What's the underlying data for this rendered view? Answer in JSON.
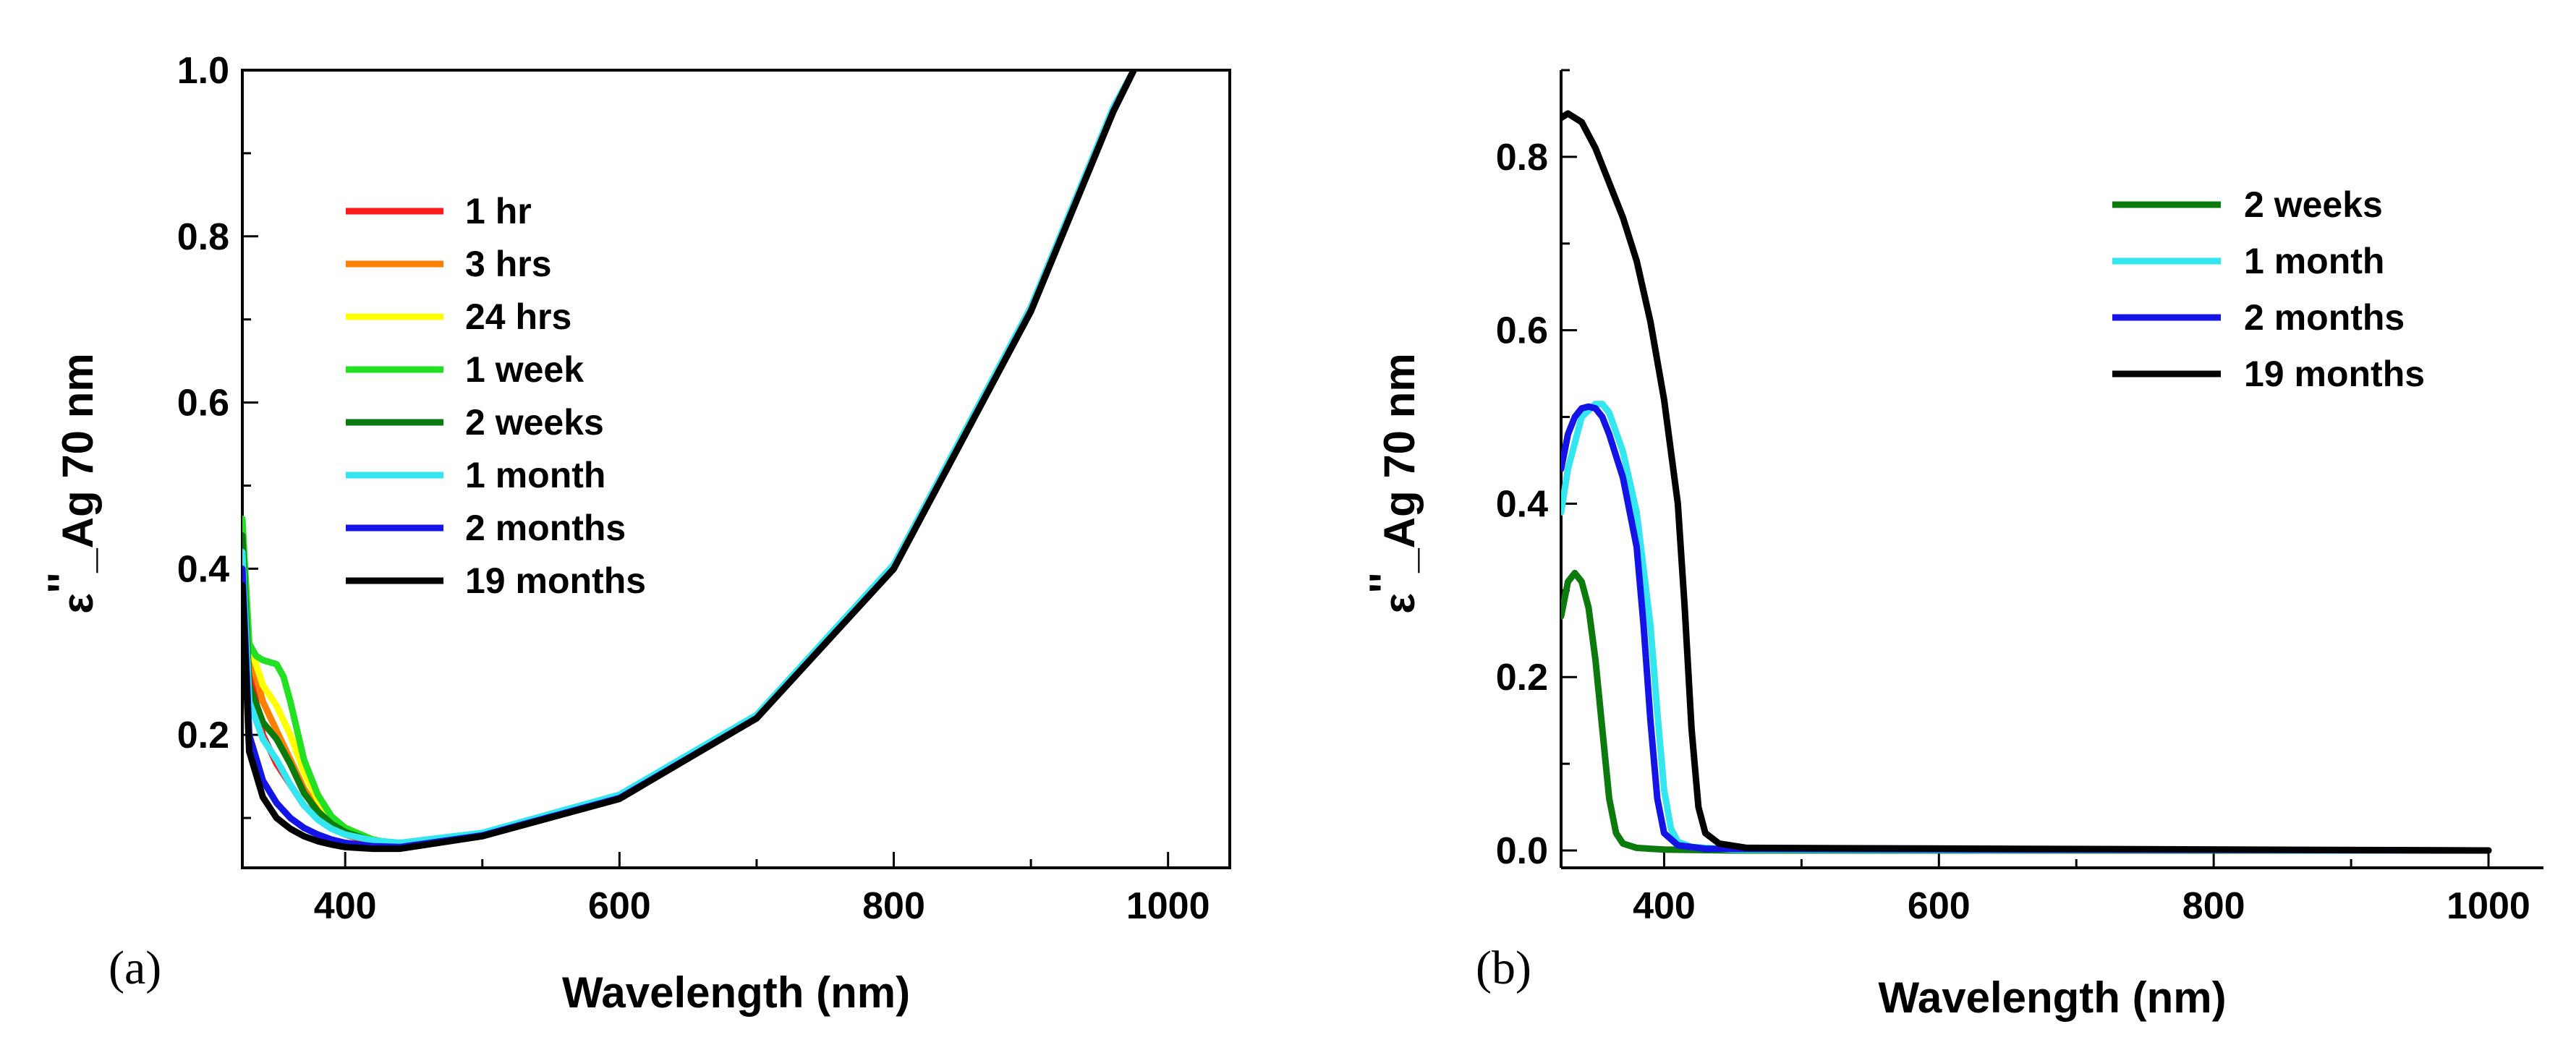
{
  "chart_data": [
    {
      "id": "a",
      "type": "line",
      "panel_label": "(a)",
      "xlabel": "Wavelength (nm)",
      "ylabel_main": "ε",
      "ylabel_prime": "''",
      "ylabel_rest": "_Ag 70 nm",
      "xlim": [
        325,
        1045
      ],
      "ylim": [
        0.04,
        1.0
      ],
      "xticks": [
        400,
        600,
        800,
        1000
      ],
      "xtick_labels": [
        "400",
        "600",
        "800",
        "1000"
      ],
      "yticks": [
        0.2,
        0.4,
        0.6,
        0.8,
        1.0
      ],
      "ytick_labels": [
        "0.2",
        "0.4",
        "0.6",
        "0.8",
        "1.0"
      ],
      "legend_position": "upper-left",
      "series": [
        {
          "name": "1 hr",
          "color": "#ff1a1a",
          "x": [
            325,
            330,
            340,
            350,
            360,
            370,
            380,
            390,
            400,
            420,
            440,
            500,
            600,
            700,
            800,
            900,
            960,
            975
          ],
          "y": [
            0.43,
            0.28,
            0.2,
            0.165,
            0.14,
            0.115,
            0.1,
            0.088,
            0.08,
            0.07,
            0.066,
            0.08,
            0.125,
            0.22,
            0.4,
            0.71,
            0.95,
            1.0
          ]
        },
        {
          "name": "3 hrs",
          "color": "#ff8000",
          "x": [
            325,
            330,
            340,
            350,
            360,
            370,
            380,
            390,
            400,
            420,
            440,
            500,
            600,
            700,
            800,
            900,
            960,
            975
          ],
          "y": [
            0.44,
            0.3,
            0.24,
            0.205,
            0.17,
            0.135,
            0.11,
            0.094,
            0.084,
            0.072,
            0.067,
            0.08,
            0.125,
            0.22,
            0.4,
            0.71,
            0.95,
            1.0
          ]
        },
        {
          "name": "24 hrs",
          "color": "#ffff00",
          "x": [
            325,
            330,
            340,
            350,
            360,
            370,
            380,
            390,
            400,
            420,
            440,
            500,
            600,
            700,
            800,
            900,
            960,
            975
          ],
          "y": [
            0.45,
            0.31,
            0.26,
            0.235,
            0.2,
            0.155,
            0.122,
            0.1,
            0.088,
            0.074,
            0.068,
            0.08,
            0.125,
            0.22,
            0.4,
            0.71,
            0.95,
            1.0
          ]
        },
        {
          "name": "1 week",
          "color": "#22e022",
          "x": [
            325,
            330,
            335,
            340,
            350,
            355,
            360,
            370,
            380,
            390,
            400,
            420,
            440,
            500,
            600,
            700,
            800,
            900,
            960,
            975
          ],
          "y": [
            0.46,
            0.31,
            0.295,
            0.29,
            0.285,
            0.27,
            0.24,
            0.17,
            0.128,
            0.102,
            0.088,
            0.074,
            0.068,
            0.08,
            0.125,
            0.22,
            0.4,
            0.71,
            0.95,
            1.0
          ]
        },
        {
          "name": "2 weeks",
          "color": "#0d7a0d",
          "x": [
            325,
            330,
            340,
            350,
            360,
            370,
            380,
            390,
            400,
            420,
            440,
            500,
            600,
            700,
            800,
            900,
            960,
            975
          ],
          "y": [
            0.44,
            0.26,
            0.215,
            0.195,
            0.165,
            0.13,
            0.108,
            0.093,
            0.083,
            0.072,
            0.067,
            0.08,
            0.125,
            0.22,
            0.4,
            0.71,
            0.95,
            1.0
          ]
        },
        {
          "name": "1 month",
          "color": "#33e6f0",
          "x": [
            325,
            330,
            340,
            350,
            360,
            370,
            380,
            390,
            400,
            420,
            440,
            500,
            600,
            700,
            800,
            900,
            960,
            975
          ],
          "y": [
            0.42,
            0.24,
            0.195,
            0.17,
            0.14,
            0.115,
            0.098,
            0.087,
            0.08,
            0.073,
            0.07,
            0.082,
            0.128,
            0.224,
            0.405,
            0.715,
            0.955,
            1.0
          ]
        },
        {
          "name": "2 months",
          "color": "#1414e6",
          "x": [
            325,
            330,
            340,
            350,
            360,
            370,
            380,
            390,
            400,
            420,
            440,
            500,
            600,
            700,
            800,
            900,
            960,
            975
          ],
          "y": [
            0.4,
            0.2,
            0.145,
            0.118,
            0.1,
            0.088,
            0.08,
            0.074,
            0.07,
            0.066,
            0.065,
            0.079,
            0.124,
            0.22,
            0.4,
            0.71,
            0.95,
            1.0
          ]
        },
        {
          "name": "19 months",
          "color": "#000000",
          "x": [
            325,
            330,
            340,
            350,
            360,
            370,
            380,
            390,
            400,
            420,
            440,
            500,
            600,
            700,
            800,
            900,
            960,
            975
          ],
          "y": [
            0.38,
            0.18,
            0.125,
            0.1,
            0.087,
            0.078,
            0.072,
            0.068,
            0.065,
            0.063,
            0.063,
            0.078,
            0.123,
            0.22,
            0.4,
            0.71,
            0.95,
            1.0
          ]
        }
      ]
    },
    {
      "id": "b",
      "type": "line",
      "panel_label": "(b)",
      "xlabel": "Wavelength (nm)",
      "ylabel_main": "ε",
      "ylabel_prime": "''",
      "ylabel_rest": "_Ag 70 nm",
      "xlim": [
        325,
        1040
      ],
      "ylim": [
        -0.02,
        0.9
      ],
      "xticks": [
        400,
        600,
        800,
        1000
      ],
      "xtick_labels": [
        "400",
        "600",
        "800",
        "1000"
      ],
      "yticks": [
        0.0,
        0.2,
        0.4,
        0.6,
        0.8
      ],
      "ytick_labels": [
        "0.0",
        "0.2",
        "0.4",
        "0.6",
        "0.8"
      ],
      "legend_position": "upper-right",
      "series": [
        {
          "name": "2 weeks",
          "color": "#0d7a0d",
          "x": [
            325,
            330,
            335,
            340,
            345,
            350,
            355,
            360,
            365,
            370,
            380,
            400,
            450,
            1000
          ],
          "y": [
            0.27,
            0.31,
            0.32,
            0.31,
            0.28,
            0.22,
            0.14,
            0.06,
            0.02,
            0.008,
            0.003,
            0.001,
            0.0,
            0.0
          ]
        },
        {
          "name": "1 month",
          "color": "#33e6f0",
          "x": [
            325,
            330,
            340,
            350,
            355,
            360,
            370,
            380,
            390,
            395,
            400,
            405,
            410,
            420,
            450,
            1000
          ],
          "y": [
            0.39,
            0.44,
            0.5,
            0.515,
            0.515,
            0.505,
            0.46,
            0.39,
            0.26,
            0.16,
            0.07,
            0.025,
            0.01,
            0.004,
            0.001,
            0.0
          ]
        },
        {
          "name": "2 months",
          "color": "#1414e6",
          "x": [
            325,
            330,
            335,
            340,
            345,
            350,
            355,
            360,
            370,
            380,
            385,
            390,
            395,
            400,
            410,
            430,
            1000
          ],
          "y": [
            0.44,
            0.48,
            0.5,
            0.51,
            0.512,
            0.51,
            0.5,
            0.48,
            0.43,
            0.35,
            0.26,
            0.15,
            0.06,
            0.02,
            0.006,
            0.002,
            0.0
          ]
        },
        {
          "name": "19 months",
          "color": "#000000",
          "x": [
            325,
            330,
            340,
            350,
            360,
            370,
            380,
            390,
            400,
            410,
            415,
            420,
            425,
            430,
            440,
            460,
            1000
          ],
          "y": [
            0.845,
            0.85,
            0.84,
            0.81,
            0.77,
            0.73,
            0.68,
            0.61,
            0.52,
            0.4,
            0.28,
            0.14,
            0.05,
            0.02,
            0.008,
            0.003,
            0.0
          ]
        }
      ]
    }
  ]
}
